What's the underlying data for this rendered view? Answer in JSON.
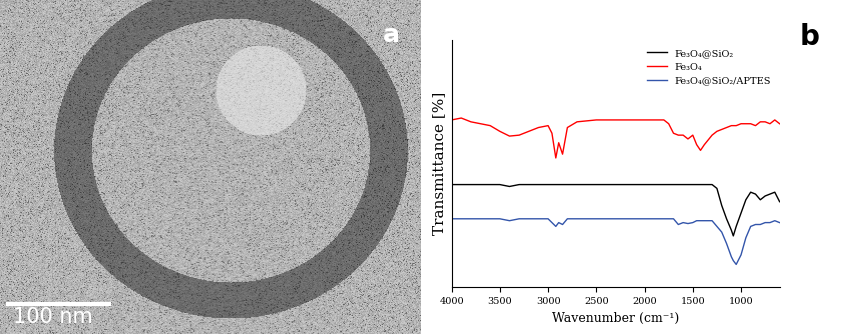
{
  "chart_data": [
    {
      "type": "image",
      "annotations": [
        "a",
        "100 nm"
      ]
    },
    {
      "type": "line",
      "annotations": [
        "b"
      ],
      "x_label": "Wavenumber (cm⁻¹)",
      "y_label": "Transmittance [%]",
      "x": [
        4000,
        3900,
        3800,
        3700,
        3600,
        3500,
        3400,
        3300,
        3200,
        3100,
        3000,
        2960,
        2920,
        2890,
        2850,
        2800,
        2700,
        2500,
        2300,
        2100,
        1900,
        1800,
        1750,
        1700,
        1650,
        1600,
        1550,
        1500,
        1460,
        1420,
        1380,
        1300,
        1250,
        1200,
        1150,
        1100,
        1080,
        1050,
        1000,
        950,
        900,
        850,
        800,
        750,
        700,
        650,
        600
      ],
      "series": [
        {
          "name": "Fe₃O₄@SiO₂",
          "color": "#000000",
          "values": [
            5.4,
            5.4,
            5.4,
            5.4,
            5.4,
            5.4,
            5.3,
            5.4,
            5.4,
            5.4,
            5.4,
            5.4,
            5.4,
            5.4,
            5.4,
            5.4,
            5.4,
            5.4,
            5.4,
            5.4,
            5.4,
            5.4,
            5.4,
            5.4,
            5.4,
            5.4,
            5.4,
            5.4,
            5.4,
            5.4,
            5.4,
            5.4,
            5.2,
            4.3,
            3.6,
            3.0,
            2.7,
            3.2,
            3.9,
            4.6,
            5.0,
            4.9,
            4.6,
            4.8,
            4.9,
            5.0,
            4.5
          ]
        },
        {
          "name": "Fe₃O₄",
          "color": "#ff0000",
          "values": [
            8.8,
            8.9,
            8.7,
            8.6,
            8.5,
            8.2,
            7.95,
            8.0,
            8.2,
            8.4,
            8.5,
            8.1,
            6.8,
            7.6,
            7.0,
            8.4,
            8.7,
            8.8,
            8.8,
            8.8,
            8.8,
            8.8,
            8.6,
            8.1,
            8.0,
            8.0,
            7.8,
            8.0,
            7.5,
            7.2,
            7.5,
            8.0,
            8.2,
            8.3,
            8.4,
            8.5,
            8.5,
            8.5,
            8.6,
            8.6,
            8.6,
            8.5,
            8.7,
            8.7,
            8.6,
            8.8,
            8.6
          ]
        },
        {
          "name": "Fe₃O₄@SiO₂/APTES",
          "color": "#3355aa",
          "values": [
            3.6,
            3.6,
            3.6,
            3.6,
            3.6,
            3.6,
            3.5,
            3.6,
            3.6,
            3.6,
            3.6,
            3.4,
            3.2,
            3.4,
            3.3,
            3.6,
            3.6,
            3.6,
            3.6,
            3.6,
            3.6,
            3.6,
            3.6,
            3.6,
            3.3,
            3.4,
            3.35,
            3.4,
            3.5,
            3.5,
            3.5,
            3.5,
            3.2,
            2.9,
            2.3,
            1.6,
            1.4,
            1.2,
            1.7,
            2.6,
            3.2,
            3.3,
            3.3,
            3.4,
            3.4,
            3.5,
            3.4
          ]
        }
      ],
      "xlim": [
        4000,
        600
      ],
      "xticks": [
        4000,
        3500,
        3000,
        2500,
        2000,
        1500,
        1000
      ],
      "ylim": [
        0,
        13
      ],
      "yticks": [],
      "legend": "upper right",
      "tick_labels": "x"
    }
  ]
}
